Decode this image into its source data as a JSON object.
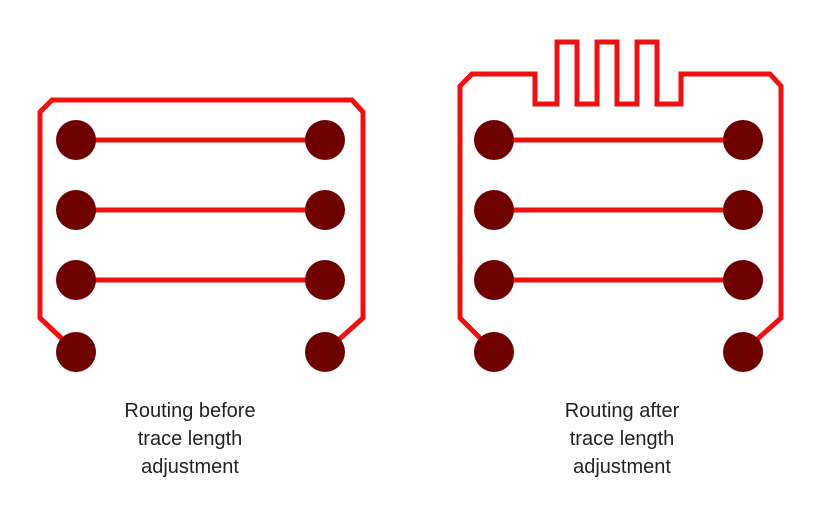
{
  "colors": {
    "trace": "#ee1111",
    "pad": "#6e0000",
    "background": "#ffffff",
    "text": "#222222"
  },
  "panels": {
    "before": {
      "caption": [
        "Routing before",
        "trace length",
        "adjustment"
      ],
      "pad_rows": 4,
      "serpentine": false
    },
    "after": {
      "caption": [
        "Routing after",
        "trace length",
        "adjustment"
      ],
      "pad_rows": 4,
      "serpentine": true
    }
  }
}
